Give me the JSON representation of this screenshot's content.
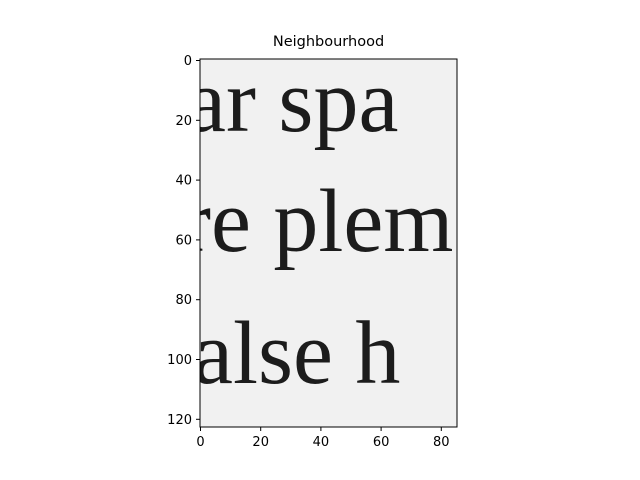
{
  "figure": {
    "title": "Neighbourhood",
    "background_color": "#f1f1f1",
    "ink_color": "#1c1c1c",
    "image_text_lines": [
      "ar spa",
      "re plem",
      "alse h"
    ]
  },
  "axes": {
    "x_range": [
      0,
      85
    ],
    "y_range": [
      0,
      123
    ],
    "y_inverted": true,
    "x_ticks": [
      "0",
      "20",
      "40",
      "60",
      "80"
    ],
    "y_ticks": [
      "0",
      "20",
      "40",
      "60",
      "80",
      "100",
      "120"
    ]
  }
}
